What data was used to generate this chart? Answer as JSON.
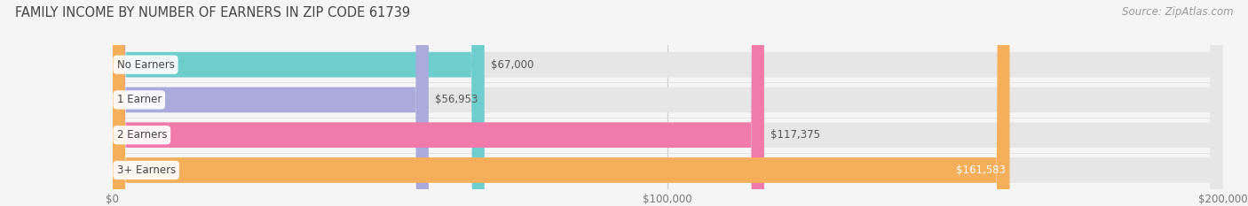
{
  "title": "FAMILY INCOME BY NUMBER OF EARNERS IN ZIP CODE 61739",
  "source": "Source: ZipAtlas.com",
  "categories": [
    "No Earners",
    "1 Earner",
    "2 Earners",
    "3+ Earners"
  ],
  "values": [
    67000,
    56953,
    117375,
    161583
  ],
  "value_labels": [
    "$67,000",
    "$56,953",
    "$117,375",
    "$161,583"
  ],
  "bar_colors": [
    "#6ECECE",
    "#AAAADD",
    "#F07BAA",
    "#F5AE5A"
  ],
  "xmax": 200000,
  "xticks": [
    0,
    100000,
    200000
  ],
  "xtick_labels": [
    "$0",
    "$100,000",
    "$200,000"
  ],
  "background_color": "#F5F5F5",
  "bar_background_color": "#E6E6E6",
  "title_fontsize": 10.5,
  "source_fontsize": 8.5,
  "label_fontsize": 8.5,
  "value_fontsize": 8.5,
  "bar_height": 0.72,
  "value_label_inside": [
    false,
    false,
    false,
    true
  ]
}
